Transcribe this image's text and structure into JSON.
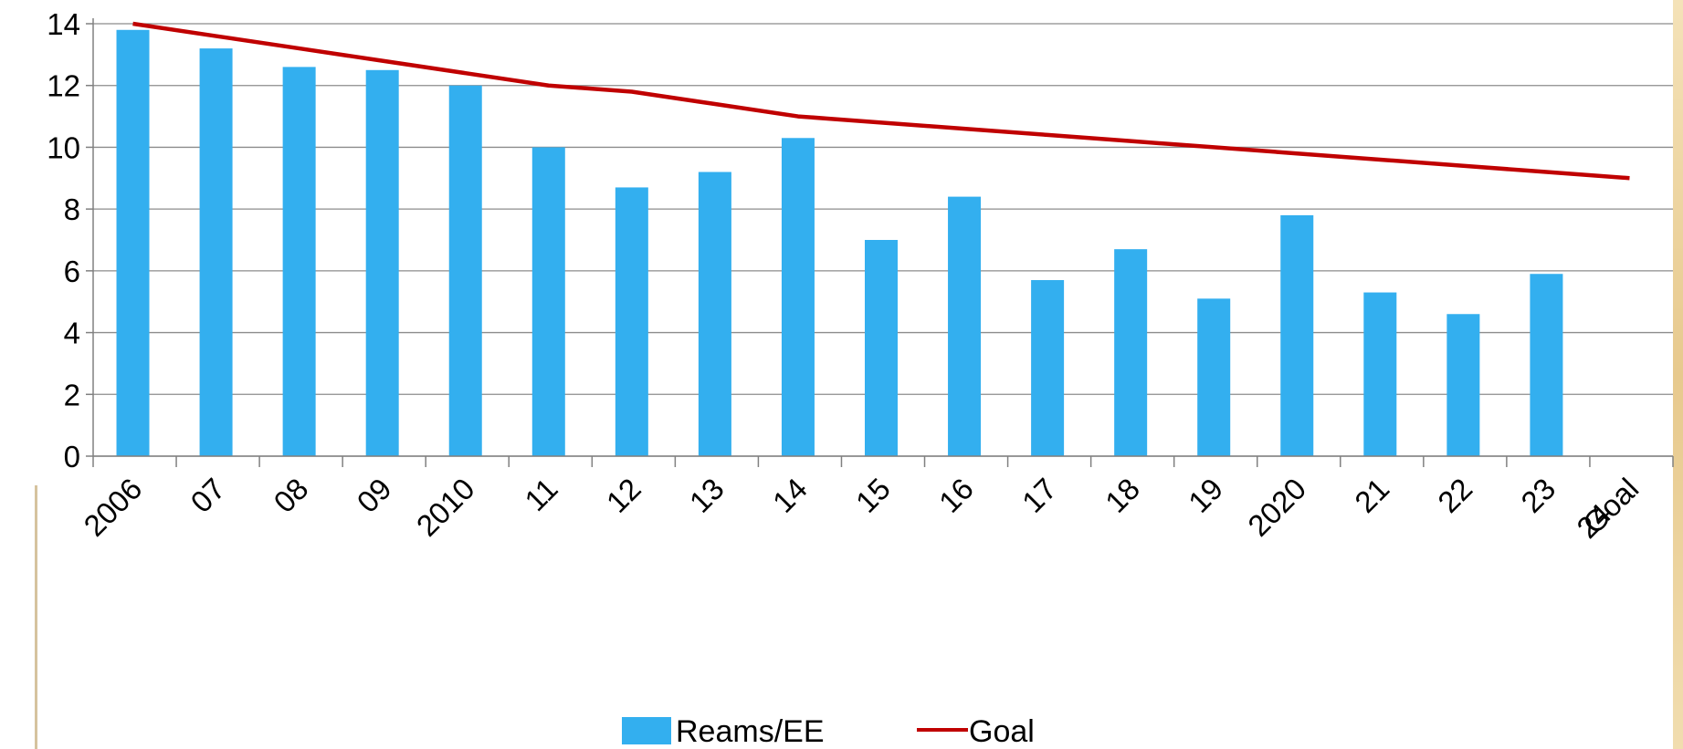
{
  "chart_data": {
    "type": "bar",
    "title": "",
    "xlabel": "",
    "ylabel": "",
    "ylim": [
      0,
      14
    ],
    "y_ticks": [
      "0",
      "2",
      "4",
      "6",
      "8",
      "10",
      "12",
      "14"
    ],
    "categories": [
      "2006",
      "07",
      "08",
      "09",
      "2010",
      "11",
      "12",
      "13",
      "14",
      "15",
      "16",
      "17",
      "18",
      "19",
      "2020",
      "21",
      "22",
      "23",
      "24 Goal"
    ],
    "series": [
      {
        "name": "Reams/EE",
        "type": "bar",
        "color": "#33AFEF",
        "values": [
          13.8,
          13.2,
          12.6,
          12.5,
          12.0,
          10.0,
          8.7,
          9.2,
          10.3,
          7.0,
          8.4,
          5.7,
          6.7,
          5.1,
          7.8,
          5.3,
          4.6,
          5.9,
          null
        ]
      },
      {
        "name": "Goal",
        "type": "line",
        "color": "#C00000",
        "values": [
          14.0,
          13.6,
          13.2,
          12.8,
          12.4,
          12.0,
          11.8,
          11.4,
          11.0,
          10.8,
          10.6,
          10.4,
          10.2,
          10.0,
          9.8,
          9.6,
          9.4,
          9.2,
          9.0
        ]
      }
    ],
    "grid": true,
    "legend": "bottom-center"
  }
}
